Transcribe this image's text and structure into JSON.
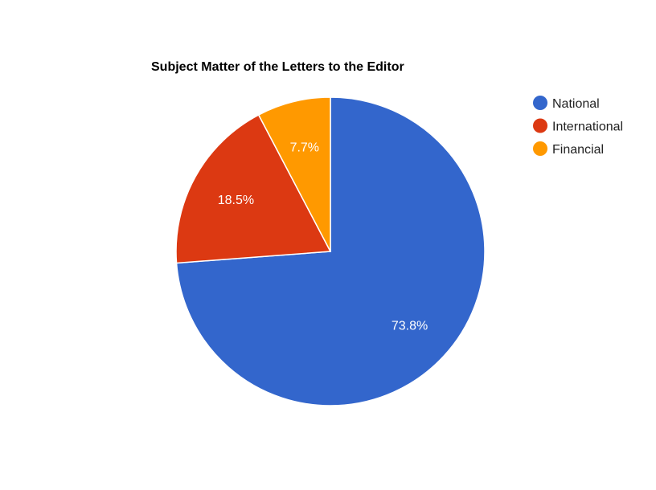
{
  "chart_data": {
    "type": "pie",
    "title": "Subject Matter of the Letters to the Editor",
    "slices": [
      {
        "label": "National",
        "value": 73.8,
        "display": "73.8%",
        "color": "#3366cc"
      },
      {
        "label": "International",
        "value": 18.5,
        "display": "18.5%",
        "color": "#dc3912"
      },
      {
        "label": "Financial",
        "value": 7.7,
        "display": "7.7%",
        "color": "#ff9900"
      }
    ],
    "legend_position": "right",
    "start_angle": "12 o'clock",
    "direction": "clockwise"
  }
}
